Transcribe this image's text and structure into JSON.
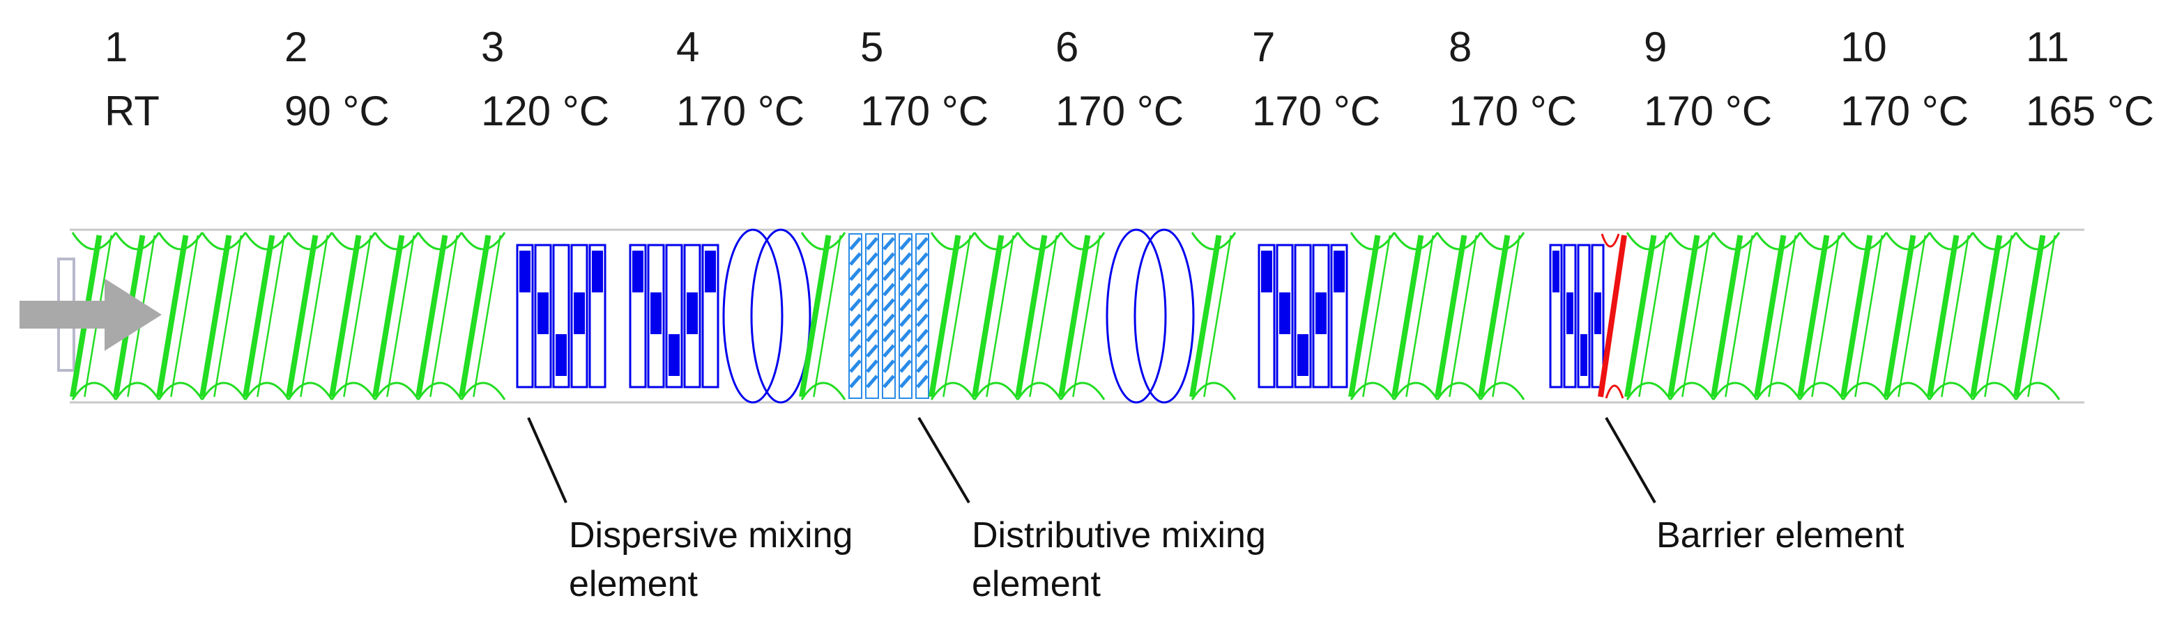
{
  "zones": [
    {
      "number": "1",
      "temperature": "RT"
    },
    {
      "number": "2",
      "temperature": "90 °C"
    },
    {
      "number": "3",
      "temperature": "120 °C"
    },
    {
      "number": "4",
      "temperature": "170 °C"
    },
    {
      "number": "5",
      "temperature": "170 °C"
    },
    {
      "number": "6",
      "temperature": "170 °C"
    },
    {
      "number": "7",
      "temperature": "170 °C"
    },
    {
      "number": "8",
      "temperature": "170 °C"
    },
    {
      "number": "9",
      "temperature": "170 °C"
    },
    {
      "number": "10",
      "temperature": "170 °C"
    },
    {
      "number": "11",
      "temperature": "165 °C"
    }
  ],
  "callouts": {
    "dispersive": {
      "line1": "Dispersive mixing",
      "line2": "element"
    },
    "distributive": {
      "line1": "Distributive mixing",
      "line2": "element"
    },
    "barrier": {
      "line1": "Barrier element"
    }
  },
  "colors": {
    "conveying_flight": "#22dd22",
    "kneading_block": "#0000ee",
    "distributive_element": "#2a8be8",
    "barrier_element": "#ee1111",
    "feed_arrow": "#a9a9a9"
  },
  "icons": {
    "feed": "right-arrow-icon"
  }
}
